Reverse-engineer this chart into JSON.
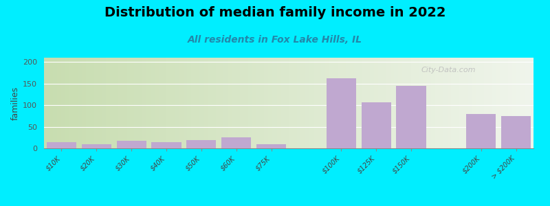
{
  "title": "Distribution of median family income in 2022",
  "subtitle": "All residents in Fox Lake Hills, IL",
  "ylabel": "families",
  "categories": [
    "$10K",
    "$20K",
    "$30K",
    "$40K",
    "$50K",
    "$60K",
    "$75K",
    "",
    "$100K",
    "$125K",
    "$150K",
    "",
    "$200K",
    "> $200K"
  ],
  "values": [
    15,
    9,
    17,
    14,
    19,
    26,
    10,
    0,
    163,
    107,
    145,
    0,
    79,
    75
  ],
  "bar_color": "#c0a8d0",
  "background_color": "#00eeff",
  "plot_bg_left": "#c8ddb0",
  "plot_bg_right": "#f0f5ec",
  "ylim": [
    0,
    210
  ],
  "yticks": [
    0,
    50,
    100,
    150,
    200
  ],
  "title_fontsize": 14,
  "subtitle_fontsize": 10,
  "watermark": "City-Data.com",
  "figsize": [
    8.0,
    3.0
  ],
  "dpi": 100
}
